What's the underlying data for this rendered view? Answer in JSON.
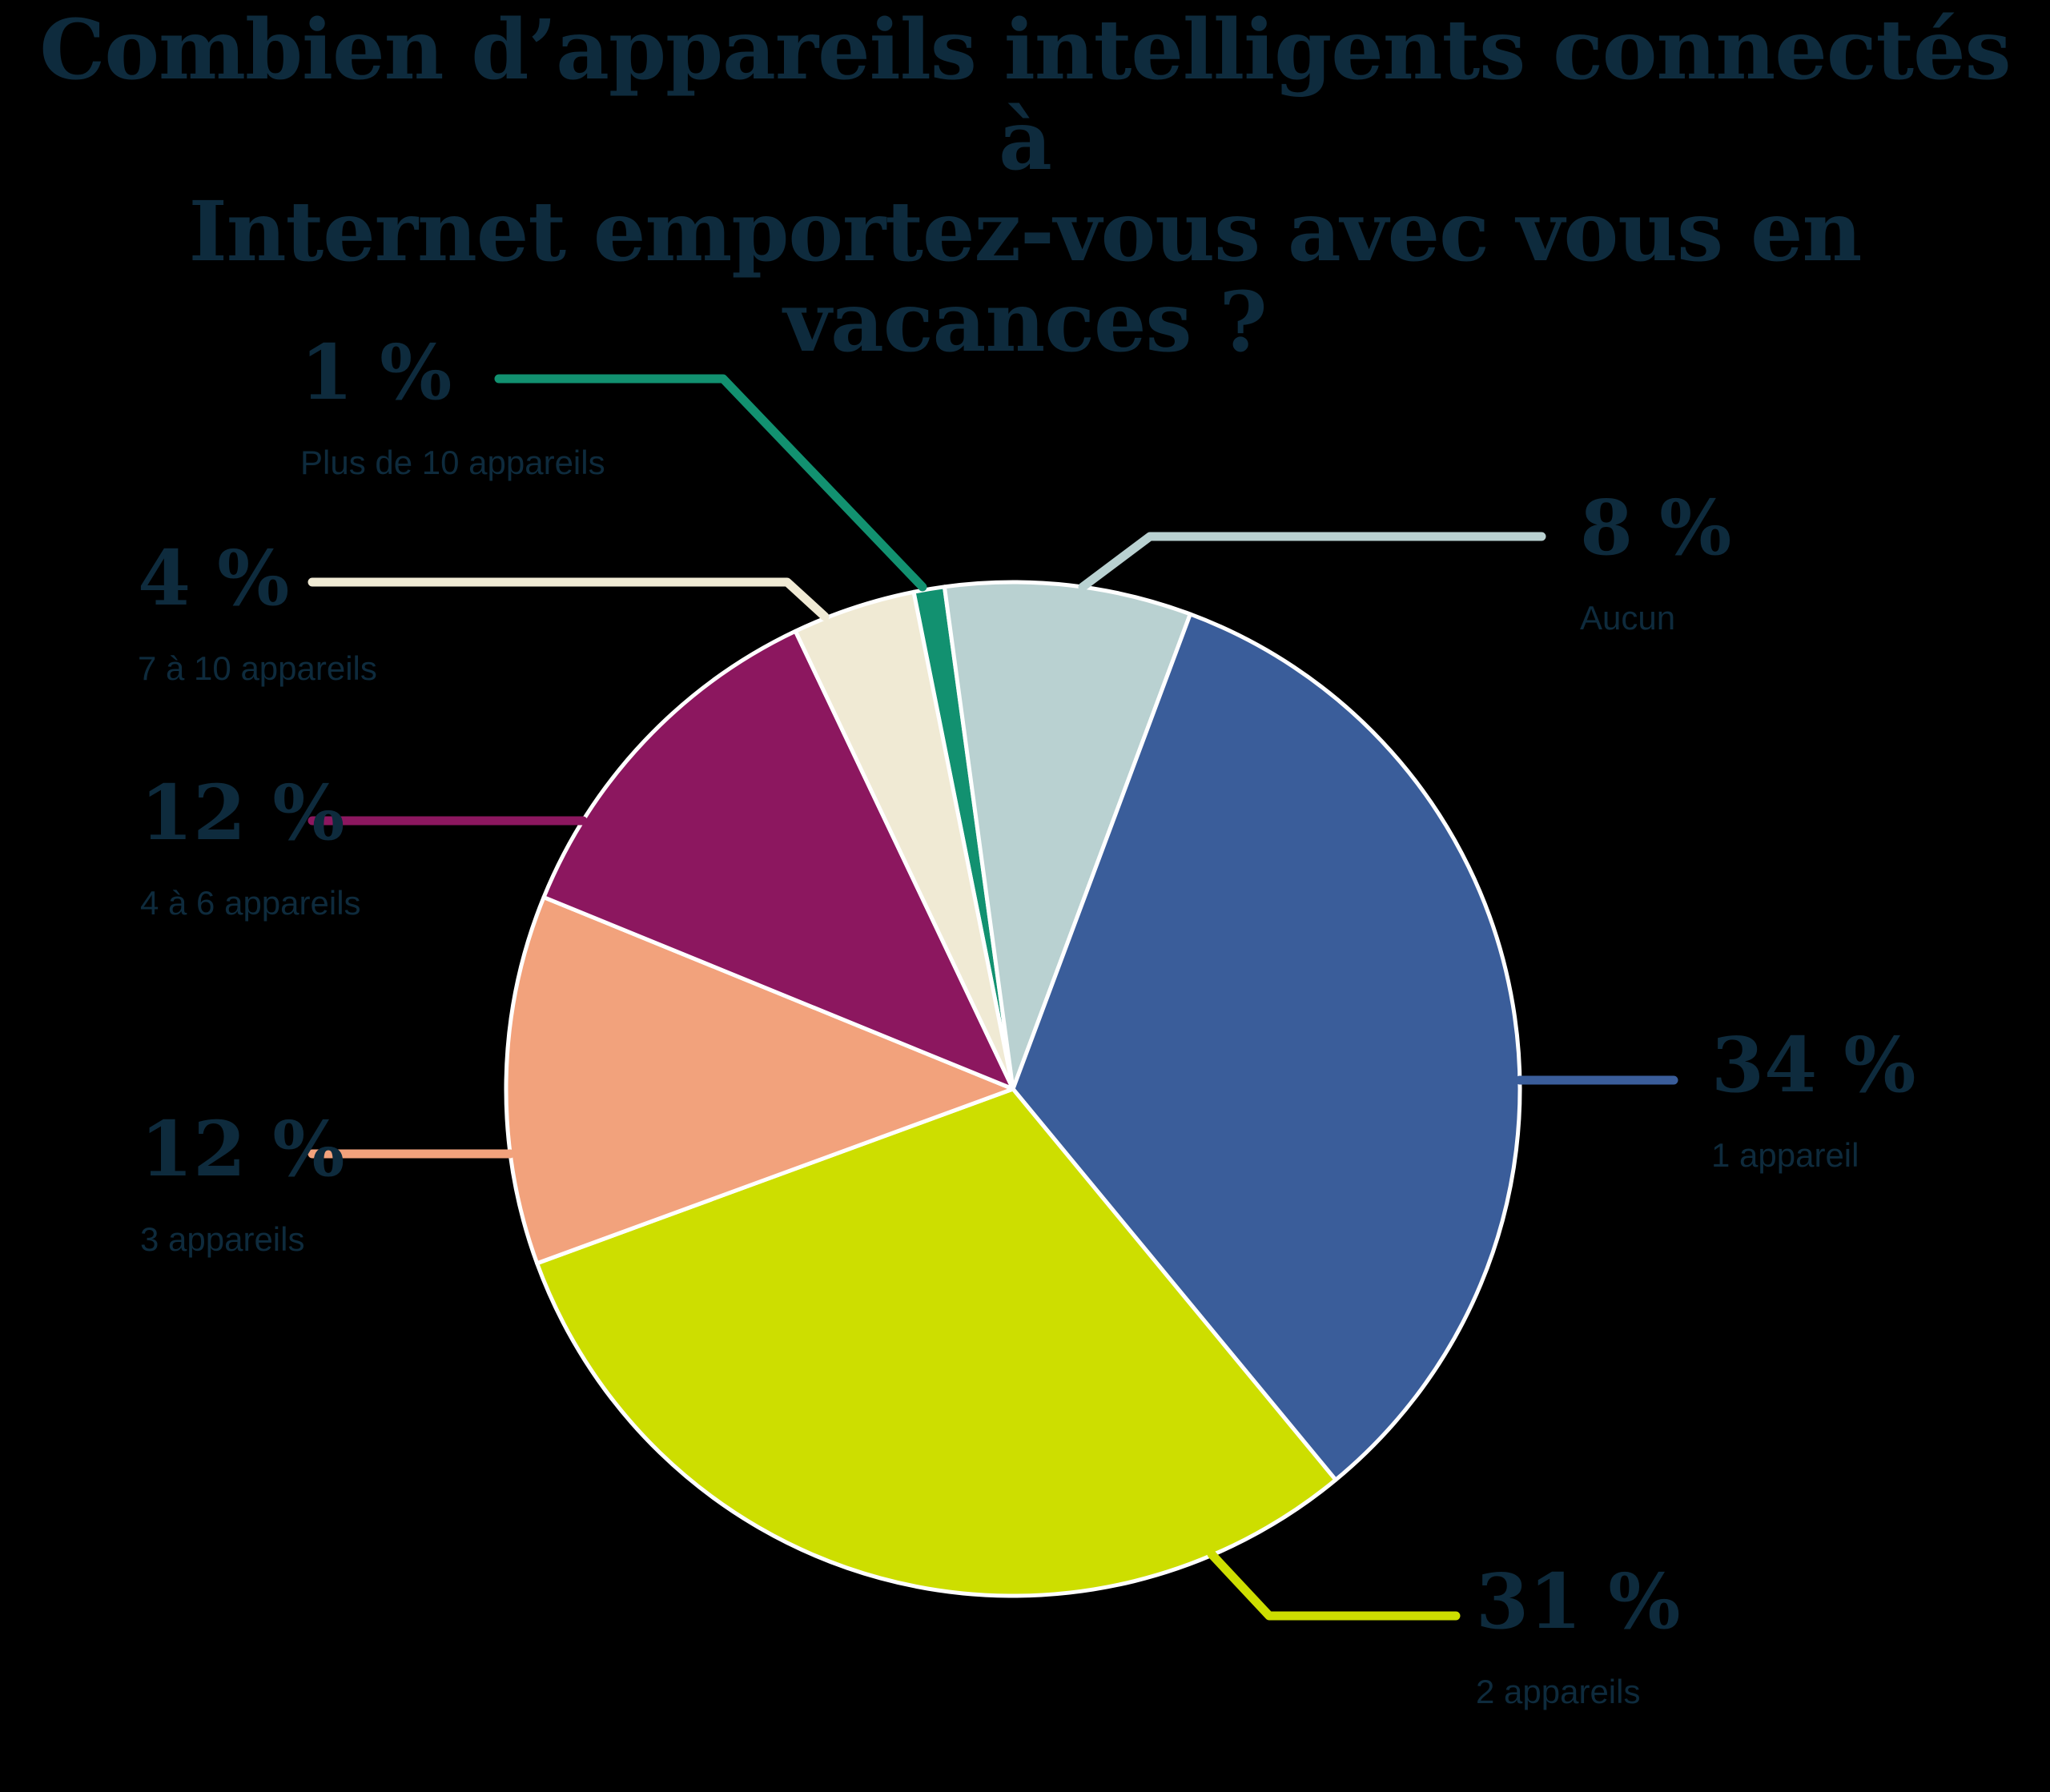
{
  "title": {
    "line1": "Combien d’appareils intelligents connectés à",
    "line2": "Internet emportez-vous avec vous en vacances ?"
  },
  "colors": {
    "background": "#000000",
    "text_navy": "#0e2b3d",
    "slice_border": "#ffffff"
  },
  "chart_data": {
    "type": "pie",
    "title": "Combien d’appareils intelligents connectés à Internet emportez-vous avec vous en vacances ?",
    "unit": "%",
    "legend_position": "around",
    "start_angle_deg": -11.3,
    "slices": [
      {
        "id": "plus-de-10-appareils",
        "label": "Plus de 10 appareils",
        "pct_label": "1 %",
        "value": 1,
        "color": "#129170"
      },
      {
        "id": "aucun",
        "label": "Aucun",
        "pct_label": "8 %",
        "value": 8,
        "color": "#b9d1d1"
      },
      {
        "id": "1-appareil",
        "label": "1 appareil",
        "pct_label": "34 %",
        "value": 34,
        "color": "#3a5d9a"
      },
      {
        "id": "2-appareils",
        "label": "2 appareils",
        "pct_label": "31 %",
        "value": 31,
        "color": "#cdde00"
      },
      {
        "id": "3-appareils",
        "label": "3 appareils",
        "pct_label": "12 %",
        "value": 12,
        "color": "#f2a27c"
      },
      {
        "id": "4-a-6-appareils",
        "label": "4 à 6 appareils",
        "pct_label": "12 %",
        "value": 12,
        "color": "#8c175f"
      },
      {
        "id": "7-a-10-appareils",
        "label": "7 à 10 appareils",
        "pct_label": "4 %",
        "value": 4,
        "color": "#f0ead4"
      }
    ]
  }
}
